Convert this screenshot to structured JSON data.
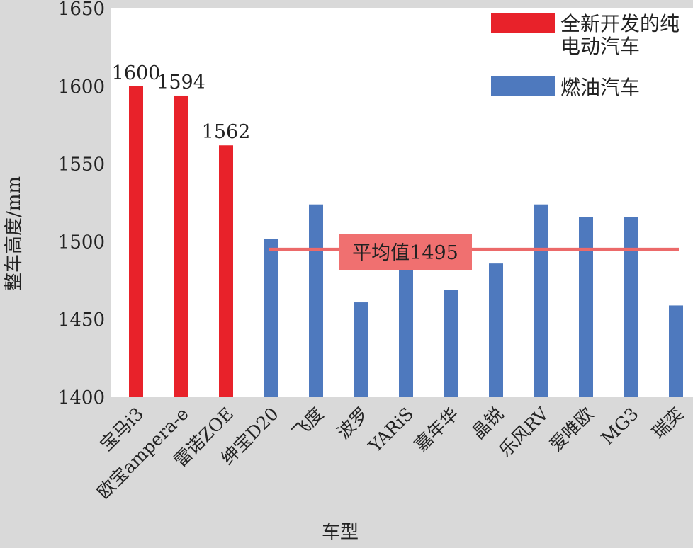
{
  "chart_data": {
    "type": "bar",
    "xlabel": "车型",
    "ylabel": "整车高度/mm",
    "ylim": [
      1400,
      1650
    ],
    "yticks": [
      1400,
      1450,
      1500,
      1550,
      1600,
      1650
    ],
    "grid": false,
    "legend_placement": "top-right",
    "categories": [
      "宝马i3",
      "欧宝ampera-e",
      "雷诺ZOE",
      "绅宝D20",
      "飞度",
      "波罗",
      "YARiS",
      "嘉年华",
      "晶锐",
      "乐风RV",
      "爱唯欧",
      "MG3",
      "瑞奕"
    ],
    "values": [
      1600,
      1594,
      1562,
      1502,
      1524,
      1461,
      1485,
      1469,
      1486,
      1524,
      1516,
      1516,
      1459
    ],
    "groups": [
      "ev",
      "ev",
      "ev",
      "fuel",
      "fuel",
      "fuel",
      "fuel",
      "fuel",
      "fuel",
      "fuel",
      "fuel",
      "fuel",
      "fuel"
    ],
    "data_labels": [
      "1600",
      "1594",
      "1562",
      "",
      "",
      "",
      "",
      "",
      "",
      "",
      "",
      "",
      ""
    ],
    "series": [
      {
        "key": "ev",
        "name": "全新开发的纯电动汽车",
        "name_lines": [
          "全新开发的纯",
          "电动汽车"
        ],
        "color": "#e8222a"
      },
      {
        "key": "fuel",
        "name": "燃油汽车",
        "name_lines": [
          "燃油汽车"
        ],
        "color": "#4e79be"
      }
    ],
    "average": {
      "value": 1495,
      "label": "平均值1495",
      "line_color": "#ec6a6a",
      "box_color": "#f07070"
    }
  }
}
